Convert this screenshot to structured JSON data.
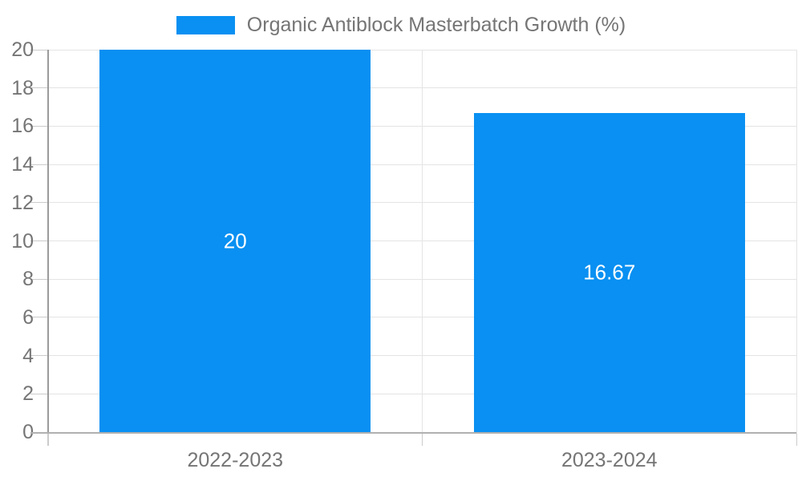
{
  "chart_data": {
    "type": "bar",
    "title": "Organic Antiblock Masterbatch Growth (%)",
    "legend": {
      "position": "top",
      "label": "Organic Antiblock Masterbatch Growth (%)"
    },
    "categories": [
      "2022-2023",
      "2023-2024"
    ],
    "series": [
      {
        "name": "Organic Antiblock Masterbatch Growth (%)",
        "values": [
          20,
          16.67
        ],
        "labels": [
          "20",
          "16.67"
        ]
      }
    ],
    "xlabel": "",
    "ylabel": "",
    "ylim": [
      0,
      20
    ],
    "yticks": [
      0,
      2,
      4,
      6,
      8,
      10,
      12,
      14,
      16,
      18,
      20
    ],
    "grid": true,
    "colors": {
      "bar": "#0990F2",
      "bar_label": "#FFFFFF",
      "axis_text": "#757575",
      "legend_text": "#757575",
      "gridline": "#E4E4E4",
      "tick": "#CBCBCB",
      "axis_line": "#9B9B9B",
      "baseline": "#B0B0B0",
      "background": "#FFFFFF"
    }
  }
}
